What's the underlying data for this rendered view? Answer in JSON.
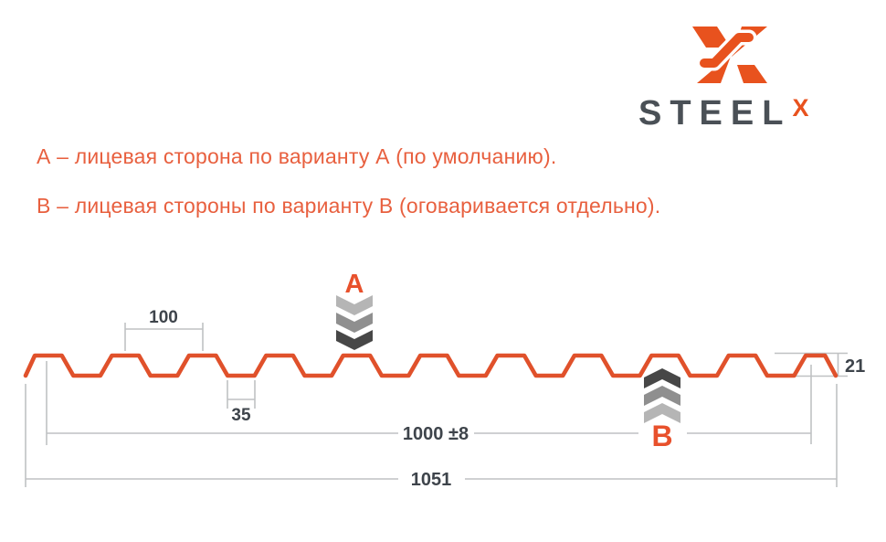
{
  "logo": {
    "brand": "STEEL",
    "brand_sup": "X",
    "orange": "#e8521e",
    "dark": "#4a5056"
  },
  "notes": {
    "line_a": "А – лицевая сторона по варианту А (по умолчанию).",
    "line_b": "В – лицевая стороны по варианту В (оговаривается отдельно).",
    "color": "#e8603f"
  },
  "diagram": {
    "marker_a": "A",
    "marker_b": "B",
    "dims": {
      "pitch": "100",
      "valley_width": "35",
      "working_width": "1000 ±8",
      "overall_width": "1051",
      "height": "21"
    },
    "profile_color": "#e0512b",
    "dim_line_color": "#bfc1c3",
    "dim_text_color": "#3e444b",
    "chevron_colors": [
      "#b5b5b5",
      "#8f8f8f",
      "#474747"
    ]
  }
}
